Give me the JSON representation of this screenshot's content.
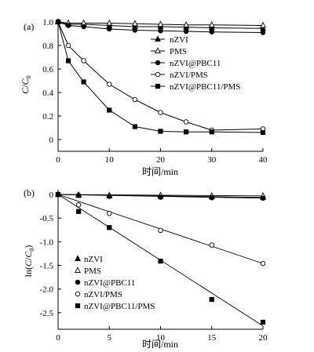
{
  "chart_data": [
    {
      "panel": "(a)",
      "type": "line",
      "xlabel": "时间/min",
      "ylabel": "C/C0",
      "ylabel_parts": {
        "c": "C",
        "sep": "/",
        "c0": "C",
        "sub": "0"
      },
      "xlim": [
        0,
        40
      ],
      "ylim": [
        -0.1,
        1.0
      ],
      "xticks": [
        0,
        10,
        20,
        30,
        40
      ],
      "yticks": [
        0,
        0.2,
        0.4,
        0.6,
        0.8,
        1.0
      ],
      "xtick_labels": [
        "0",
        "10",
        "20",
        "30",
        "40"
      ],
      "ytick_labels": [
        "0",
        "0.2",
        "0.4",
        "0.6",
        "0.8",
        "1.0"
      ],
      "legend_position": "top-right",
      "grid": false,
      "series": [
        {
          "name": "nZVI",
          "marker": "triangle-filled",
          "x": [
            0,
            2,
            5,
            10,
            15,
            20,
            25,
            30,
            40
          ],
          "y": [
            1.0,
            0.98,
            0.98,
            0.97,
            0.96,
            0.96,
            0.955,
            0.95,
            0.945
          ]
        },
        {
          "name": "PMS",
          "marker": "triangle-open",
          "x": [
            0,
            2,
            5,
            10,
            15,
            20,
            25,
            30,
            40
          ],
          "y": [
            1.0,
            0.99,
            0.99,
            0.99,
            0.985,
            0.98,
            0.975,
            0.975,
            0.97
          ]
        },
        {
          "name": "nZVI@PBC11",
          "marker": "circle-filled",
          "x": [
            0,
            2,
            5,
            10,
            15,
            20,
            25,
            30,
            40
          ],
          "y": [
            1.0,
            0.97,
            0.96,
            0.94,
            0.93,
            0.925,
            0.92,
            0.915,
            0.91
          ]
        },
        {
          "name": "nZVI/PMS",
          "marker": "circle-open",
          "x": [
            0,
            2,
            5,
            10,
            15,
            20,
            25,
            30,
            40
          ],
          "y": [
            1.0,
            0.8,
            0.67,
            0.47,
            0.34,
            0.23,
            0.15,
            0.08,
            0.09
          ]
        },
        {
          "name": "nZVI@PBC11/PMS",
          "marker": "square-filled",
          "x": [
            0,
            2,
            5,
            10,
            15,
            20,
            25,
            30,
            40
          ],
          "y": [
            1.0,
            0.67,
            0.49,
            0.25,
            0.11,
            0.07,
            0.065,
            0.065,
            0.06
          ]
        }
      ]
    },
    {
      "panel": "(b)",
      "type": "scatter",
      "xlabel": "时间/min",
      "ylabel": "ln(C/C0)",
      "ylabel_parts": {
        "pre": "ln(",
        "c": "C",
        "sep": "/",
        "c0": "C",
        "sub": "0",
        "post": ")"
      },
      "xlim": [
        0,
        20
      ],
      "ylim": [
        -2.85,
        0.1
      ],
      "xticks": [
        0,
        5,
        10,
        15,
        20
      ],
      "yticks": [
        0,
        -0.5,
        -1.0,
        -1.5,
        -2.0,
        -2.5
      ],
      "xtick_labels": [
        "0",
        "5",
        "10",
        "15",
        "20"
      ],
      "ytick_labels": [
        "0",
        "-0.5",
        "-1.0",
        "-1.5",
        "-2.0",
        "-2.5"
      ],
      "legend_position": "bottom-left",
      "grid": false,
      "series": [
        {
          "name": "nZVI",
          "marker": "triangle-filled",
          "x": [
            0,
            2,
            5,
            10,
            15,
            20
          ],
          "y": [
            0,
            -0.02,
            -0.03,
            -0.04,
            -0.05,
            -0.06
          ],
          "fit": [
            0,
            -0.06
          ]
        },
        {
          "name": "PMS",
          "marker": "triangle-open",
          "x": [
            0,
            2,
            5,
            10,
            15,
            20
          ],
          "y": [
            0,
            -0.01,
            -0.02,
            -0.02,
            -0.03,
            -0.03
          ],
          "fit": [
            0,
            -0.03
          ]
        },
        {
          "name": "nZVI@PBC11",
          "marker": "circle-filled",
          "x": [
            0,
            2,
            5,
            10,
            15,
            20
          ],
          "y": [
            0,
            -0.02,
            -0.04,
            -0.06,
            -0.07,
            -0.08
          ],
          "fit": [
            0,
            -0.08
          ]
        },
        {
          "name": "nZVI/PMS",
          "marker": "circle-open",
          "x": [
            0,
            2,
            5,
            10,
            15,
            20
          ],
          "y": [
            0,
            -0.22,
            -0.4,
            -0.76,
            -1.07,
            -1.46
          ],
          "fit": [
            0,
            -1.46
          ]
        },
        {
          "name": "nZVI@PBC11/PMS",
          "marker": "square-filled",
          "x": [
            0,
            2,
            5,
            10,
            15,
            20
          ],
          "y": [
            0,
            -0.36,
            -0.7,
            -1.41,
            -2.22,
            -2.7
          ],
          "fit": [
            0,
            -2.78
          ]
        }
      ]
    }
  ]
}
